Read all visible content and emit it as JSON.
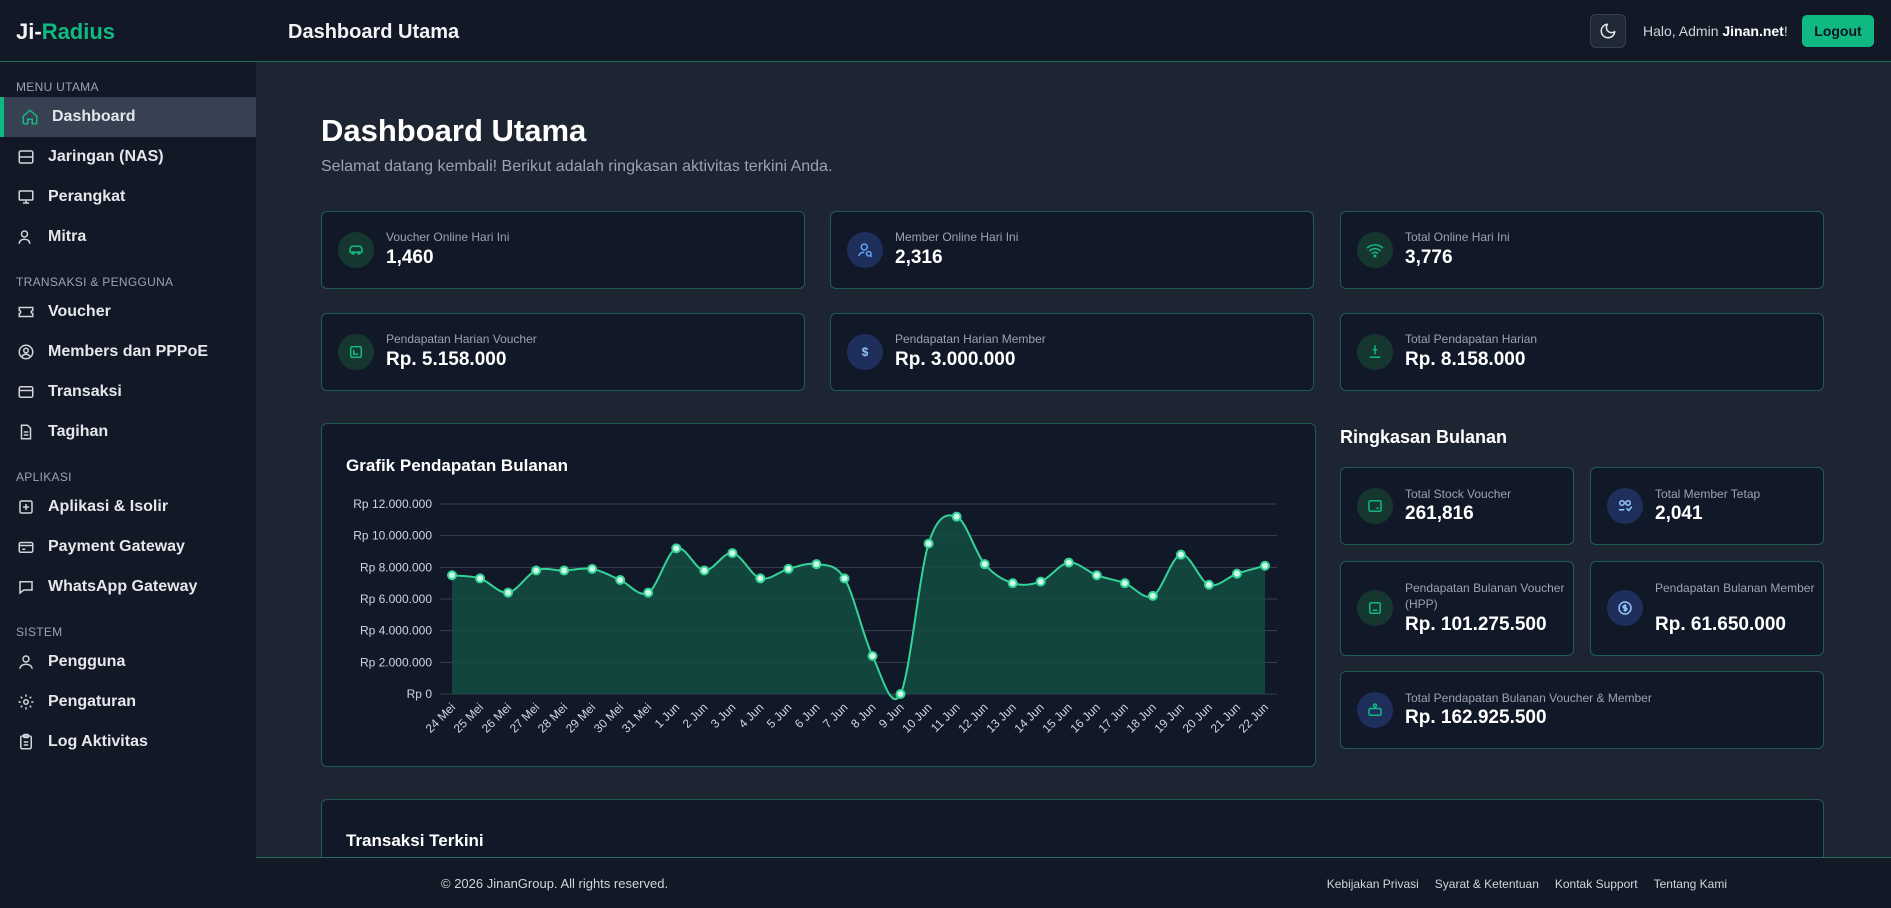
{
  "brand": {
    "prefix": "Ji-",
    "accent": "Radius"
  },
  "header": {
    "title": "Dashboard Utama",
    "greeting": "Halo, Admin ",
    "user": "Jinan.net",
    "greeting_suffix": "!",
    "logout_label": "Logout",
    "theme_icon": "moon-icon"
  },
  "sidebar": {
    "section_main": "MENU UTAMA",
    "section_trans": "TRANSAKSI & PENGGUNA",
    "section_apps": "APLIKASI",
    "section_system": "SISTEM",
    "items": [
      {
        "label": "Dashboard",
        "icon": "home-icon"
      },
      {
        "label": "Jaringan (NAS)",
        "icon": "server-icon"
      },
      {
        "label": "Perangkat",
        "icon": "monitor-icon"
      },
      {
        "label": "Mitra",
        "icon": "partner-icon"
      },
      {
        "label": "Voucher",
        "icon": "ticket-icon"
      },
      {
        "label": "Members dan PPPoE",
        "icon": "user-circle-icon"
      },
      {
        "label": "Transaksi",
        "icon": "credit-card-icon"
      },
      {
        "label": "Tagihan",
        "icon": "document-icon"
      },
      {
        "label": "Aplikasi & Isolir",
        "icon": "plus-square-icon"
      },
      {
        "label": "Payment Gateway",
        "icon": "wallet-icon"
      },
      {
        "label": "WhatsApp Gateway",
        "icon": "chat-icon"
      },
      {
        "label": "Pengguna",
        "icon": "user-icon"
      },
      {
        "label": "Pengaturan",
        "icon": "settings-icon"
      },
      {
        "label": "Log Aktivitas",
        "icon": "clipboard-icon"
      }
    ]
  },
  "main": {
    "title": "Dashboard Utama",
    "subtitle": "Selamat datang kembali! Berikut adalah ringkasan aktivitas terkini Anda."
  },
  "stats": [
    {
      "label": "Voucher Online Hari Ini",
      "value": "1,460",
      "icon": "car-icon"
    },
    {
      "label": "Member Online Hari Ini",
      "value": "2,316",
      "icon": "user-search-icon"
    },
    {
      "label": "Total Online Hari Ini",
      "value": "3,776",
      "icon": "wifi-icon"
    },
    {
      "label": "Pendapatan Harian Voucher",
      "value": "Rp. 5.158.000",
      "icon": "voucher-money-icon"
    },
    {
      "label": "Pendapatan Harian Member",
      "value": "Rp. 3.000.000",
      "icon": "dollar-icon"
    },
    {
      "label": "Total Pendapatan Harian",
      "value": "Rp. 8.158.000",
      "icon": "coin-stack-icon"
    }
  ],
  "summary": {
    "heading": "Ringkasan Bulanan",
    "cards": [
      {
        "label": "Total Stock Voucher",
        "value": "261,816",
        "icon": "stock-icon"
      },
      {
        "label": "Total Member Tetap",
        "value": "2,041",
        "icon": "members-icon"
      },
      {
        "label": "Pendapatan Bulanan Voucher (HPP)",
        "value": "Rp. 101.275.500",
        "icon": "receipt-icon"
      },
      {
        "label": "Pendapatan Bulanan Member",
        "value": "Rp. 61.650.000",
        "icon": "dollar-circle-icon"
      },
      {
        "label": "Total Pendapatan Bulanan Voucher & Member",
        "value": "Rp. 162.925.500",
        "icon": "cash-register-icon"
      }
    ]
  },
  "chart_title": "Grafik Pendapatan Bulanan",
  "chart_data": {
    "type": "area",
    "title": "Grafik Pendapatan Bulanan",
    "categories": [
      "24 Mei",
      "25 Mei",
      "26 Mei",
      "27 Mei",
      "28 Mei",
      "29 Mei",
      "30 Mei",
      "31 Mei",
      "1 Jun",
      "2 Jun",
      "3 Jun",
      "4 Jun",
      "5 Jun",
      "6 Jun",
      "7 Jun",
      "8 Jun",
      "9 Jun",
      "10 Jun",
      "11 Jun",
      "12 Jun",
      "13 Jun",
      "14 Jun",
      "15 Jun",
      "16 Jun",
      "17 Jun",
      "18 Jun",
      "19 Jun",
      "20 Jun",
      "21 Jun",
      "22 Jun"
    ],
    "values": [
      7500000,
      7300000,
      6400000,
      7800000,
      7800000,
      7900000,
      7200000,
      6400000,
      9200000,
      7800000,
      8900000,
      7300000,
      7900000,
      8200000,
      7300000,
      2400000,
      0,
      9500000,
      11200000,
      8200000,
      7000000,
      7100000,
      8300000,
      7500000,
      7000000,
      6200000,
      8800000,
      6900000,
      7600000,
      8100000
    ],
    "ylim": [
      0,
      12000000
    ],
    "yticks": [
      "Rp 0",
      "Rp 2.000.000",
      "Rp 4.000.000",
      "Rp 6.000.000",
      "Rp 8.000.000",
      "Rp 10.000.000",
      "Rp 12.000.000"
    ],
    "line_color": "#34d399",
    "fill_color": "#134e43",
    "grid": true
  },
  "transactions": {
    "title": "Transaksi Terkini"
  },
  "footer": {
    "copyright": "© 2026 JinanGroup. All rights reserved.",
    "links": [
      "Kebijakan Privasi",
      "Syarat & Ketentuan",
      "Kontak Support",
      "Tentang Kami"
    ]
  },
  "colors": {
    "accent": "#10b981",
    "background": "#1e2532",
    "card": "#111827",
    "sidebar": "#121826"
  }
}
